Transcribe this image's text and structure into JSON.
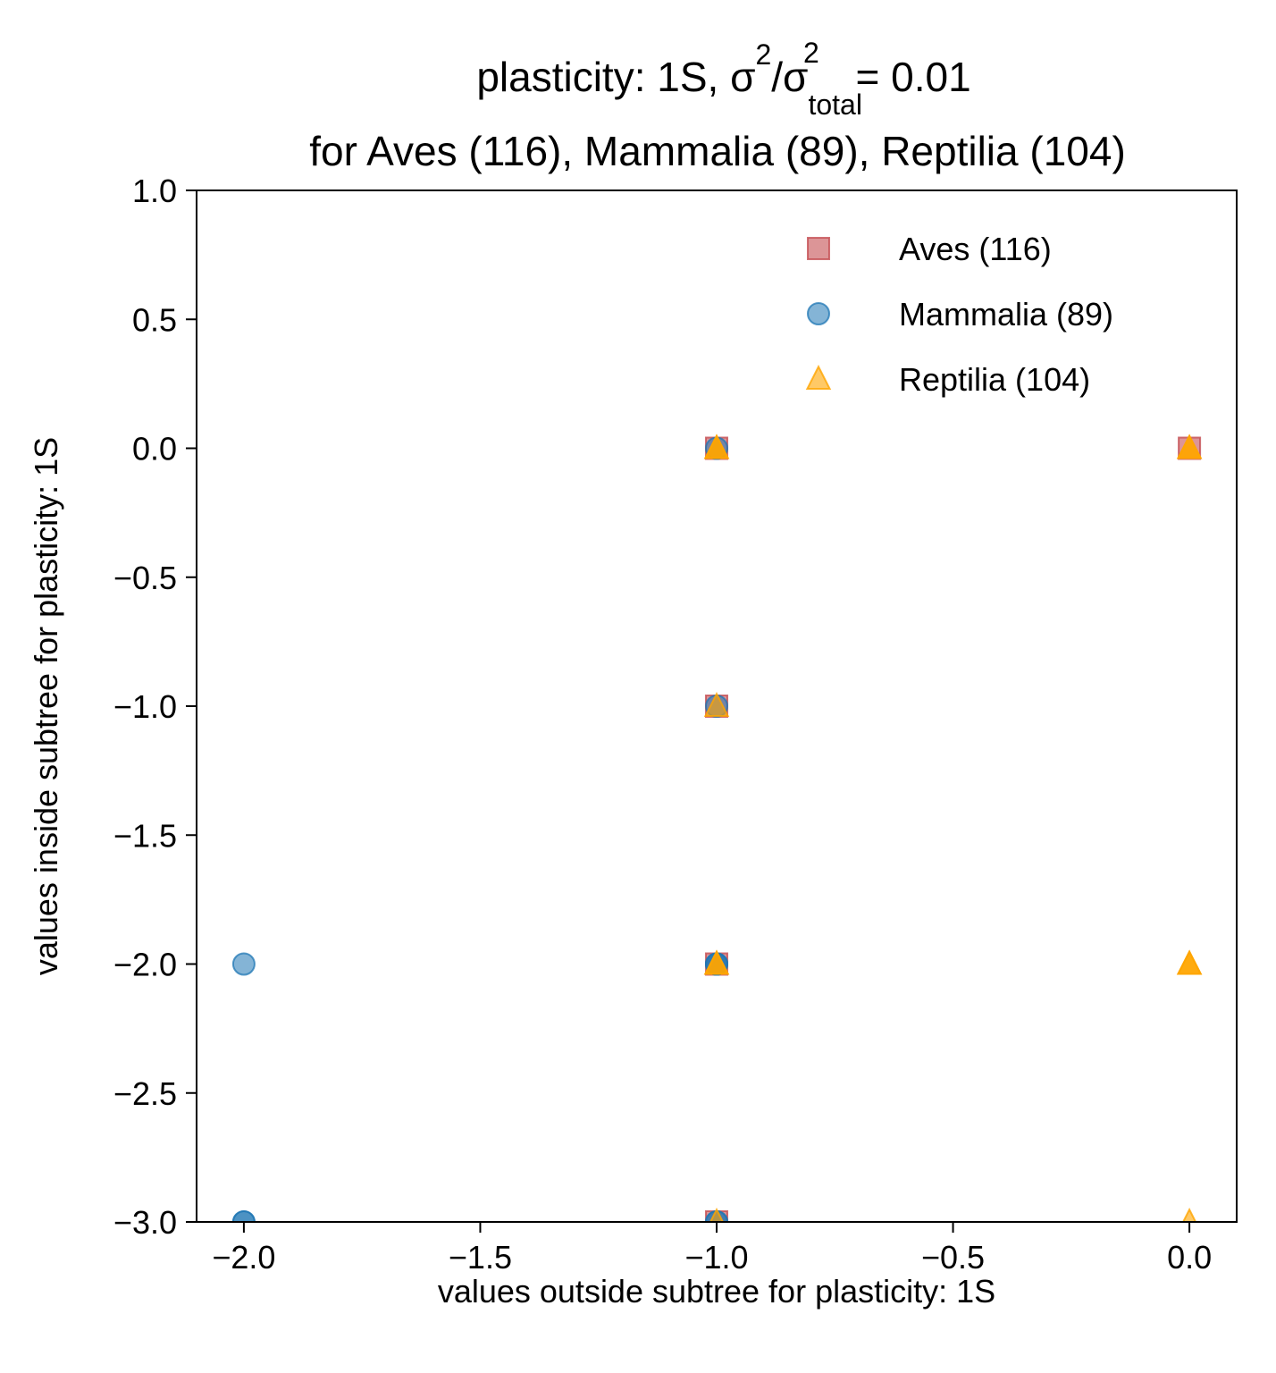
{
  "chart_data": {
    "type": "scatter",
    "title_line1": {
      "prefix": "plasticity: 1S, σ",
      "sup1": "2",
      "mid": "/σ",
      "sub": "total",
      "sup2": "2",
      "suffix": " =  0.01"
    },
    "title_line2": "for Aves (116), Mammalia (89), Reptilia (104)",
    "xlabel": "values outside subtree for plasticity: 1S",
    "ylabel": "values inside subtree for plasticity: 1S",
    "xlim": [
      -2.1,
      0.1
    ],
    "ylim": [
      -3.0,
      1.0
    ],
    "xticks": [
      -2.0,
      -1.5,
      -1.0,
      -0.5,
      0.0
    ],
    "xtick_labels": [
      "−2.0",
      "−1.5",
      "−1.0",
      "−0.5",
      "0.0"
    ],
    "yticks": [
      1.0,
      0.5,
      0.0,
      -0.5,
      -1.0,
      -1.5,
      -2.0,
      -2.5,
      -3.0
    ],
    "ytick_labels": [
      "1.0",
      "0.5",
      "0.0",
      "−0.5",
      "−1.0",
      "−1.5",
      "−2.0",
      "−2.5",
      "−3.0"
    ],
    "grid": false,
    "legend_position": "top-right",
    "series": [
      {
        "name": "Aves (116)",
        "marker": "square",
        "color": "#c44e52",
        "alpha": 0.6,
        "points": [
          [
            -1.0,
            0.0
          ],
          [
            -1.0,
            -1.0
          ],
          [
            -1.0,
            -2.0
          ],
          [
            -1.0,
            -3.0
          ],
          [
            0.0,
            0.0
          ]
        ]
      },
      {
        "name": "Mammalia (89)",
        "marker": "circle",
        "color": "#1f77b4",
        "alpha": 0.55,
        "points": [
          [
            -1.0,
            0.0
          ],
          [
            -1.0,
            -1.0
          ],
          [
            -1.0,
            -2.0
          ],
          [
            -1.0,
            -2.0
          ],
          [
            -1.0,
            -2.0
          ],
          [
            -1.0,
            -3.0
          ],
          [
            -1.0,
            -3.0
          ],
          [
            -2.0,
            -2.0
          ],
          [
            -2.0,
            -3.0
          ],
          [
            -2.0,
            -3.0
          ]
        ]
      },
      {
        "name": "Reptilia (104)",
        "marker": "triangle",
        "color": "#ffa500",
        "alpha": 0.6,
        "points": [
          [
            -1.0,
            0.0
          ],
          [
            -1.0,
            0.0
          ],
          [
            -1.0,
            0.0
          ],
          [
            -1.0,
            -1.0
          ],
          [
            -1.0,
            -2.0
          ],
          [
            -1.0,
            -2.0
          ],
          [
            -1.0,
            -2.0
          ],
          [
            -1.0,
            -3.0
          ],
          [
            0.0,
            0.0
          ],
          [
            0.0,
            0.0
          ],
          [
            0.0,
            0.0
          ],
          [
            0.0,
            -2.0
          ],
          [
            0.0,
            -2.0
          ],
          [
            0.0,
            -2.0
          ],
          [
            0.0,
            -3.0
          ]
        ]
      }
    ]
  }
}
